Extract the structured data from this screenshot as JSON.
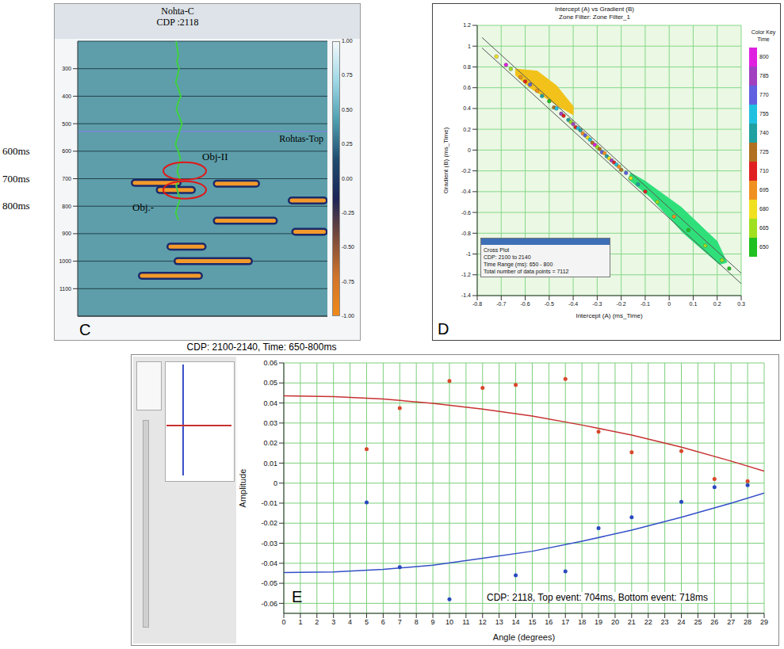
{
  "chart_data": [
    {
      "type": "section",
      "panel": "C",
      "xlim": [
        2090,
        2160
      ],
      "ylim": [
        200,
        1200
      ],
      "yticks": [
        300,
        400,
        500,
        600,
        700,
        800,
        900,
        1000,
        1100
      ],
      "tick_labels": "y",
      "grid": true,
      "time_labels": [
        {
          "value": 600,
          "label": "600ms"
        },
        {
          "value": 700,
          "label": "700ms"
        },
        {
          "value": 800,
          "label": "800ms"
        }
      ],
      "well": {
        "name": "Nohta-C",
        "label": "CDP :2118",
        "cdp": 2118,
        "color": "#3fd13f",
        "log": {
          "cdp": [
            2117.6,
            2117.9,
            2118.2,
            2117.8,
            2118.4,
            2118.0,
            2117.5,
            2118.3,
            2118.9,
            2118.1,
            2117.7,
            2118.5,
            2119.2,
            2118.6,
            2118.0,
            2117.4,
            2118.2,
            2118.8,
            2118.3,
            2117.9,
            2118.6,
            2117.6,
            2118.1,
            2118.7,
            2118.0,
            2117.5,
            2118.2
          ],
          "time": [
            200,
            225,
            250,
            275,
            300,
            325,
            350,
            375,
            400,
            425,
            450,
            475,
            500,
            525,
            550,
            575,
            600,
            625,
            650,
            675,
            700,
            725,
            750,
            775,
            800,
            825,
            850
          ]
        }
      },
      "horizons": [
        {
          "name": "Rohtas-Top",
          "time": 528,
          "color": "#7a86d8"
        }
      ],
      "objects": [
        {
          "label": "Obj-II",
          "cdp": 2120,
          "time": 672
        },
        {
          "label": "Obj.-",
          "cdp": 2120,
          "time": 741
        }
      ],
      "events": [
        {
          "cdp": [
            2106,
            2118
          ],
          "time": 715
        },
        {
          "cdp": [
            2129,
            2140
          ],
          "time": 718
        },
        {
          "cdp": [
            2113,
            2122
          ],
          "time": 741
        },
        {
          "cdp": [
            2150,
            2159
          ],
          "time": 779
        },
        {
          "cdp": [
            2129,
            2145
          ],
          "time": 853
        },
        {
          "cdp": [
            2151,
            2159
          ],
          "time": 893
        },
        {
          "cdp": [
            2116,
            2125
          ],
          "time": 947
        },
        {
          "cdp": [
            2118,
            2138
          ],
          "time": 1000
        },
        {
          "cdp": [
            2108,
            2124
          ],
          "time": 1053
        }
      ],
      "colorbar": {
        "range": [
          -1,
          1
        ],
        "ticks": [
          {
            "value": 1,
            "label": "1.00"
          },
          {
            "value": 0.75,
            "label": "0.75"
          },
          {
            "value": 0.5,
            "label": "0.50"
          },
          {
            "value": 0.25,
            "label": "0.25"
          },
          {
            "value": 0,
            "label": "0.00"
          },
          {
            "value": -0.25,
            "label": "-0.25"
          },
          {
            "value": -0.5,
            "label": "-0.50"
          },
          {
            "value": -0.75,
            "label": "-0.75"
          },
          {
            "value": -1,
            "label": "-1.00"
          }
        ],
        "colors": [
          "#f2f8fb",
          "#9fd8e6",
          "#4e9fb0",
          "#1f4c6e",
          "#1a2457",
          "#7a4a3a",
          "#d0742a",
          "#f08a1a"
        ]
      }
    },
    {
      "type": "scatter",
      "panel": "D",
      "title": "Intercept (A) vs Gradient (B)",
      "subtitle": "Zone Filter: Zone Filter_1",
      "x_label": "Intercept (A) (ms_Time)",
      "y_label": "Gradient (B) (ms_Time)",
      "xlim": [
        -0.8,
        0.3
      ],
      "xticks": [
        -0.8,
        -0.7,
        -0.6,
        -0.5,
        -0.4,
        -0.3,
        -0.2,
        -0.1,
        0,
        0.1,
        0.2,
        0.3
      ],
      "ylim": [
        -1.4,
        1.2
      ],
      "yticks": [
        -1.4,
        -1.2,
        -1,
        -0.8,
        -0.6,
        -0.4,
        -0.2,
        0,
        0.2,
        0.4,
        0.6,
        0.8,
        1,
        1.2
      ],
      "grid": true,
      "marker": "circle",
      "points": {
        "x": [
          -0.72,
          -0.68,
          -0.66,
          -0.62,
          -0.6,
          -0.58,
          -0.55,
          -0.53,
          -0.5,
          -0.48,
          -0.47,
          -0.45,
          -0.44,
          -0.42,
          -0.41,
          -0.4,
          -0.39,
          -0.38,
          -0.37,
          -0.36,
          -0.35,
          -0.34,
          -0.33,
          -0.32,
          -0.31,
          -0.3,
          -0.29,
          -0.28,
          -0.27,
          -0.26,
          -0.25,
          -0.24,
          -0.23,
          -0.22,
          -0.21,
          -0.2,
          -0.18,
          -0.16,
          -0.13,
          -0.1,
          -0.05,
          0.02,
          0.08,
          0.15,
          0.22,
          0.25
        ],
        "y": [
          0.9,
          0.82,
          0.78,
          0.7,
          0.66,
          0.63,
          0.57,
          0.52,
          0.47,
          0.41,
          0.4,
          0.35,
          0.33,
          0.29,
          0.27,
          0.25,
          0.22,
          0.21,
          0.19,
          0.16,
          0.14,
          0.12,
          0.1,
          0.07,
          0.05,
          0.03,
          0.01,
          -0.02,
          -0.03,
          -0.06,
          -0.08,
          -0.1,
          -0.12,
          -0.14,
          -0.16,
          -0.19,
          -0.22,
          -0.27,
          -0.33,
          -0.4,
          -0.5,
          -0.64,
          -0.77,
          -0.92,
          -1.06,
          -1.14
        ],
        "time": [
          680,
          800,
          665,
          690,
          710,
          775,
          700,
          740,
          655,
          725,
          760,
          790,
          705,
          745,
          670,
          780,
          715,
          755,
          735,
          695,
          770,
          685,
          750,
          720,
          795,
          660,
          730,
          765,
          700,
          740,
          680,
          785,
          710,
          755,
          690,
          725,
          770,
          675,
          745,
          705,
          660,
          690,
          655,
          670,
          660,
          650
        ]
      },
      "zones": [
        {
          "color": "#f2c21b",
          "x": [
            -0.64,
            -0.55,
            -0.47,
            -0.4,
            -0.4,
            -0.46,
            -0.58,
            -0.64
          ],
          "y": [
            0.78,
            0.76,
            0.62,
            0.42,
            0.34,
            0.42,
            0.6,
            0.72
          ]
        },
        {
          "color": "#2fe07a",
          "x": [
            -0.16,
            -0.1,
            0.05,
            0.2,
            0.24,
            0.21,
            0.06,
            -0.08,
            -0.17
          ],
          "y": [
            -0.22,
            -0.3,
            -0.55,
            -0.88,
            -1.08,
            -1.1,
            -0.8,
            -0.45,
            -0.28
          ]
        }
      ],
      "trend_lines": [
        {
          "x": [
            -0.78,
            0.3
          ],
          "y": [
            1.083,
            -1.185
          ]
        },
        {
          "x": [
            -0.78,
            0.3
          ],
          "y": [
            0.983,
            -1.285
          ]
        }
      ],
      "color_key": {
        "title": "Color Key Time",
        "ticks": [
          800,
          785,
          770,
          755,
          740,
          725,
          710,
          695,
          680,
          665,
          650
        ],
        "colors": [
          "#e020e0",
          "#a040c0",
          "#6060e0",
          "#20c0e0",
          "#20a0a0",
          "#b07020",
          "#e02020",
          "#f09020",
          "#f0e020",
          "#a0e020",
          "#20c020"
        ]
      },
      "info_box": [
        "Cross Plot",
        "CDP: 2100 to 2140",
        "Time Range (ms): 650 - 800",
        "Total number of data points = 7112"
      ]
    },
    {
      "type": "line",
      "panel": "E",
      "title": "CDP: 2100-2140, Time: 650-800ms",
      "x_label": "Angle (degrees)",
      "y_label": "Amplitude",
      "xlim": [
        0,
        29
      ],
      "xticks": [
        0,
        1,
        2,
        3,
        4,
        5,
        6,
        7,
        8,
        9,
        10,
        11,
        12,
        13,
        14,
        15,
        16,
        17,
        18,
        19,
        20,
        21,
        22,
        23,
        24,
        25,
        26,
        27,
        28,
        29
      ],
      "ylim": [
        -0.065,
        0.06
      ],
      "yticks": [
        -0.06,
        -0.05,
        -0.04,
        -0.03,
        -0.02,
        -0.01,
        0,
        0.01,
        0.02,
        0.03,
        0.04,
        0.05,
        0.06
      ],
      "grid": true,
      "series": [
        {
          "type": "line",
          "color": "#c83232",
          "x": [
            0,
            3,
            6,
            9,
            12,
            15,
            18,
            21,
            24,
            27,
            29
          ],
          "values": [
            0.0436,
            0.0432,
            0.042,
            0.0398,
            0.037,
            0.0335,
            0.029,
            0.024,
            0.018,
            0.011,
            0.006
          ]
        },
        {
          "type": "scatter",
          "marker": "circle",
          "color": "#d9472b",
          "x": [
            5,
            7,
            10,
            12,
            14,
            17,
            19,
            21,
            24,
            26,
            28
          ],
          "values": [
            0.017,
            0.0375,
            0.051,
            0.0475,
            0.049,
            0.052,
            0.0257,
            0.0154,
            0.016,
            0.002,
            0.001
          ]
        },
        {
          "type": "line",
          "color": "#3450c8",
          "x": [
            0,
            3,
            6,
            9,
            12,
            15,
            18,
            21,
            24,
            27,
            29
          ],
          "values": [
            -0.0446,
            -0.0443,
            -0.043,
            -0.041,
            -0.0375,
            -0.034,
            -0.029,
            -0.0235,
            -0.017,
            -0.01,
            -0.005
          ]
        },
        {
          "type": "scatter",
          "marker": "circle",
          "color": "#2a48c0",
          "x": [
            5,
            7,
            10,
            14,
            17,
            19,
            21,
            24,
            26,
            28
          ],
          "values": [
            -0.0096,
            -0.042,
            -0.058,
            -0.046,
            -0.044,
            -0.0225,
            -0.017,
            -0.0093,
            -0.002,
            -0.001
          ]
        }
      ],
      "annotations": [
        "CDP: 2118, Top event: 704ms, Bottom event: 718ms"
      ]
    }
  ]
}
